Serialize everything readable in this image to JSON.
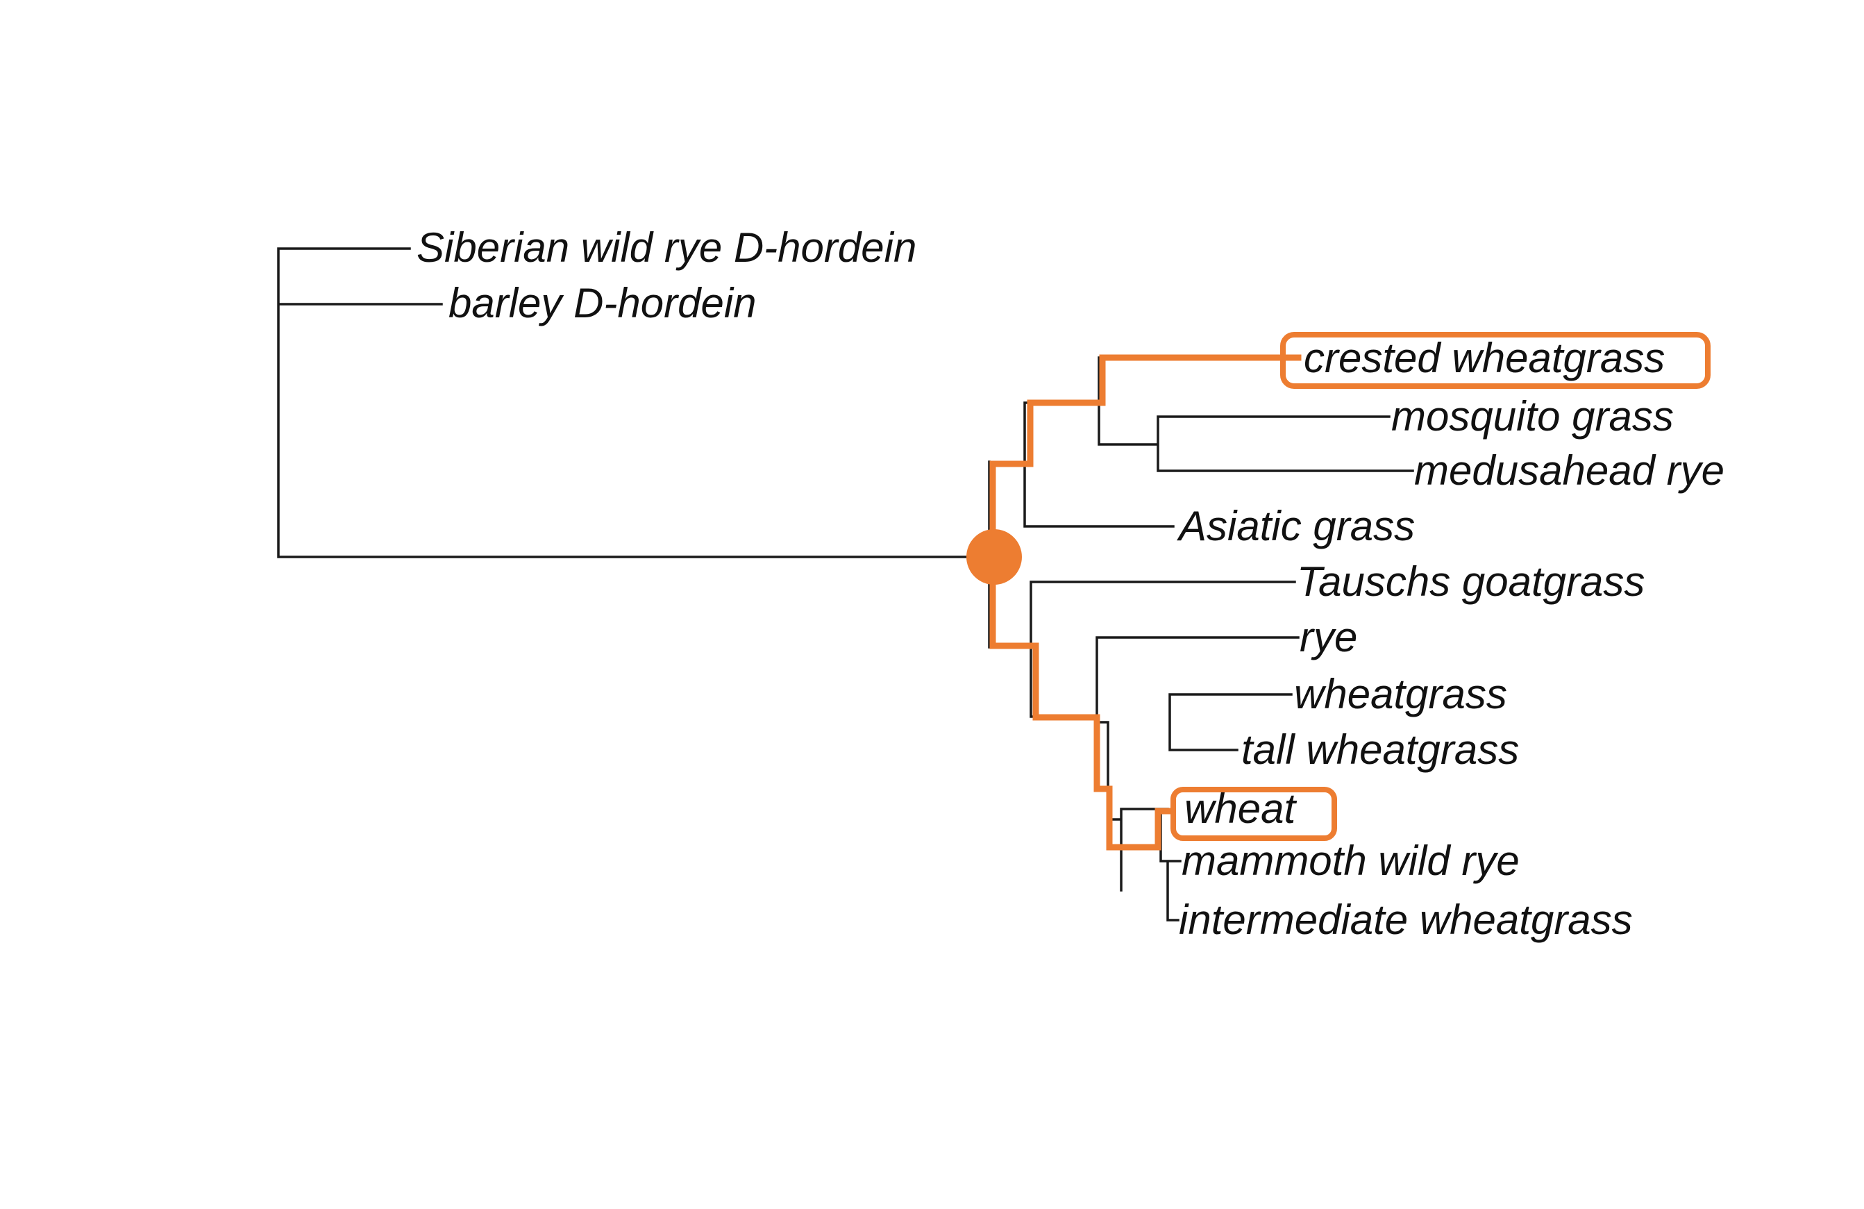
{
  "tree": {
    "tips": {
      "siberian_wild_rye": "Siberian wild rye D-hordein",
      "barley": "barley D-hordein",
      "crested_wheatgrass": "crested wheatgrass",
      "mosquito_grass": "mosquito grass",
      "medusahead_rye": "medusahead rye",
      "asiatic_grass": "Asiatic grass",
      "tauschs_goatgrass": "Tauschs goatgrass",
      "rye": "rye",
      "wheatgrass": "wheatgrass",
      "tall_wheatgrass": "tall wheatgrass",
      "wheat": "wheat",
      "mammoth_wild_rye": "mammoth wild rye",
      "intermediate_wheatgrass": "intermediate wheatgrass"
    },
    "highlighted_tips": [
      "crested wheatgrass",
      "wheat"
    ],
    "highlight_color": "#ED7D31",
    "branch_color": "#1a1a1a"
  }
}
